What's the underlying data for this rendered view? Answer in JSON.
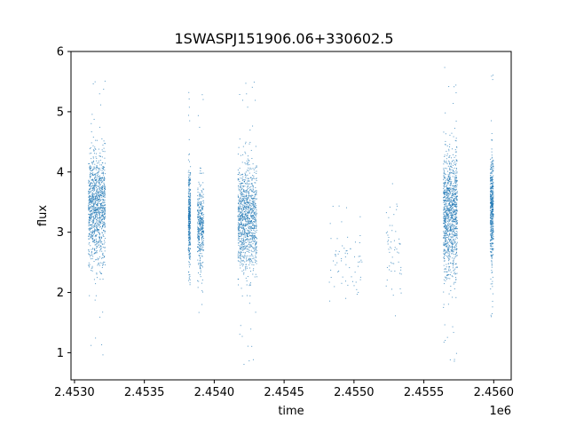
{
  "chart_data": {
    "type": "scatter",
    "title": "1SWASPJ151906.06+330602.5",
    "xlabel": "time",
    "ylabel": "flux",
    "x_offset_label": "1e6",
    "xlim": [
      2452975,
      2456125
    ],
    "ylim": [
      0.55,
      6.0
    ],
    "x_ticks": [
      2453000,
      2453500,
      2454000,
      2454500,
      2455000,
      2455500,
      2456000
    ],
    "x_tick_labels": [
      "2.4530",
      "2.4535",
      "2.4540",
      "2.4545",
      "2.4550",
      "2.4555",
      "2.4560"
    ],
    "y_ticks": [
      1,
      2,
      3,
      4,
      5,
      6
    ],
    "y_tick_labels": [
      "1",
      "2",
      "3",
      "4",
      "5",
      "6"
    ],
    "grid": false,
    "legend": "none",
    "marker_color": "#1f77b4",
    "series": [
      {
        "clusters": [
          {
            "x_start": 2453100,
            "x_end": 2453220,
            "y_center": 3.4,
            "y_spread": 0.45,
            "y_min": 0.95,
            "y_max": 5.7,
            "density": 1.0
          },
          {
            "x_start": 2453815,
            "x_end": 2453830,
            "y_center": 3.2,
            "y_spread": 0.4,
            "y_min": 1.2,
            "y_max": 5.5,
            "density": 0.35
          },
          {
            "x_start": 2453880,
            "x_end": 2453925,
            "y_center": 3.1,
            "y_spread": 0.35,
            "y_min": 1.6,
            "y_max": 5.55,
            "density": 0.35
          },
          {
            "x_start": 2454170,
            "x_end": 2454305,
            "y_center": 3.2,
            "y_spread": 0.45,
            "y_min": 0.75,
            "y_max": 5.6,
            "density": 1.0
          },
          {
            "x_start": 2454820,
            "x_end": 2455060,
            "y_center": 2.55,
            "y_spread": 0.3,
            "y_min": 1.85,
            "y_max": 3.45,
            "density": 0.06
          },
          {
            "x_start": 2455230,
            "x_end": 2455340,
            "y_center": 2.8,
            "y_spread": 0.45,
            "y_min": 1.25,
            "y_max": 3.9,
            "density": 0.05
          },
          {
            "x_start": 2455640,
            "x_end": 2455740,
            "y_center": 3.3,
            "y_spread": 0.5,
            "y_min": 0.8,
            "y_max": 5.75,
            "density": 1.0
          },
          {
            "x_start": 2455975,
            "x_end": 2455998,
            "y_center": 3.4,
            "y_spread": 0.45,
            "y_min": 1.55,
            "y_max": 5.7,
            "density": 0.45
          }
        ]
      }
    ]
  }
}
